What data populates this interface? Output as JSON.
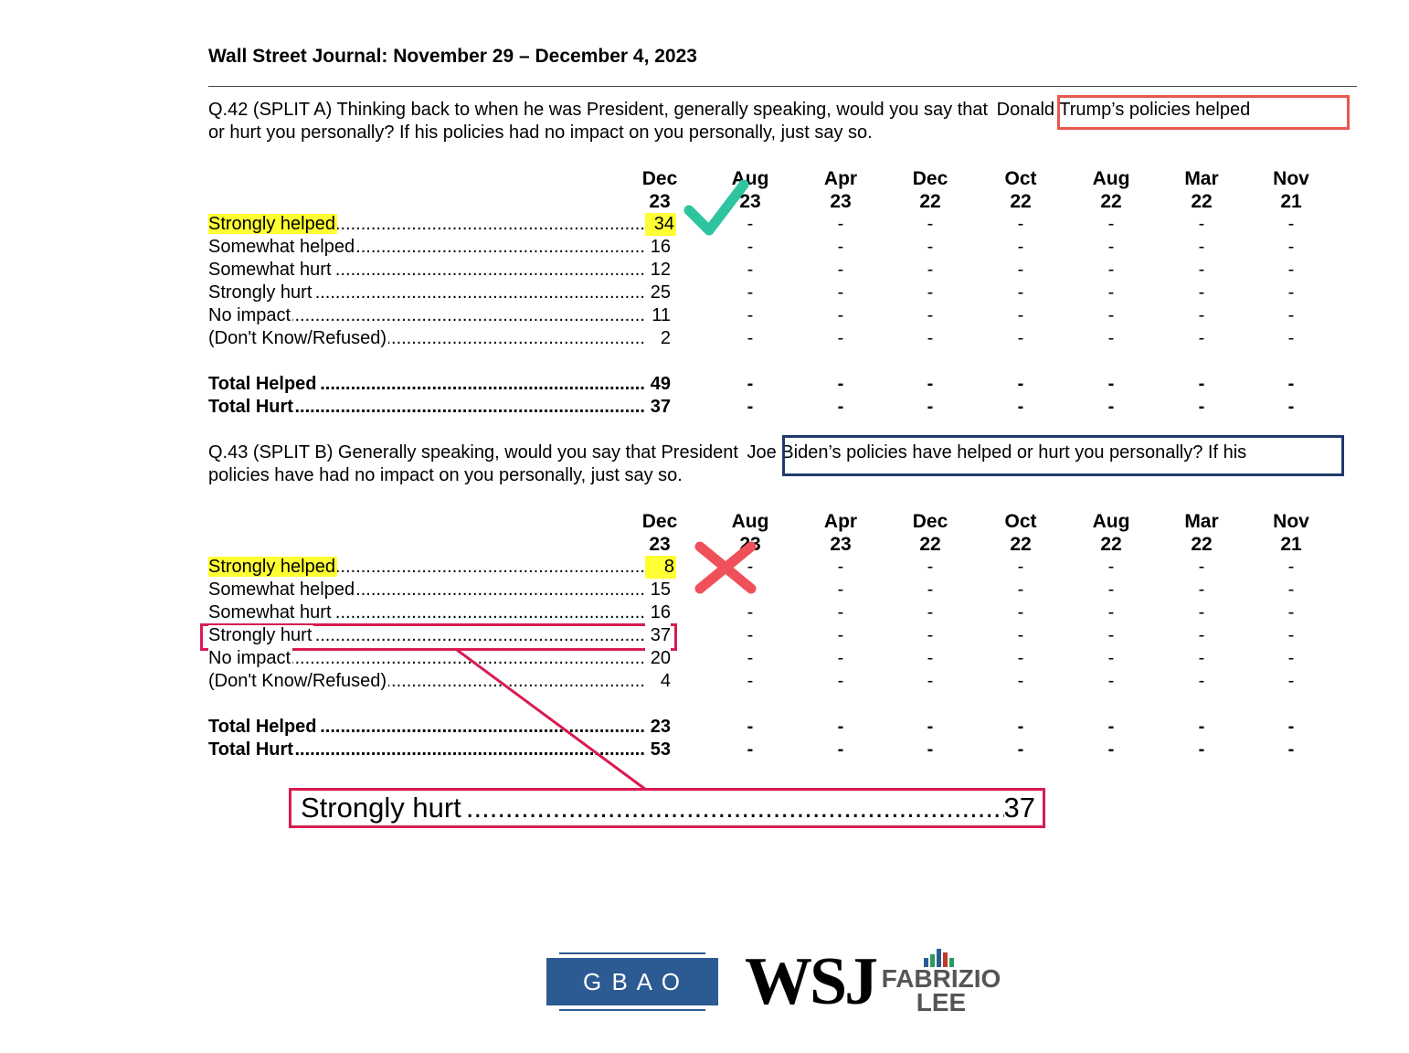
{
  "header": {
    "title": "Wall Street Journal: November 29 – December 4, 2023"
  },
  "columns": [
    {
      "month": "Dec",
      "year": "23"
    },
    {
      "month": "Aug",
      "year": "23"
    },
    {
      "month": "Apr",
      "year": "23"
    },
    {
      "month": "Dec",
      "year": "22"
    },
    {
      "month": "Oct",
      "year": "22"
    },
    {
      "month": "Aug",
      "year": "22"
    },
    {
      "month": "Mar",
      "year": "22"
    },
    {
      "month": "Nov",
      "year": "21"
    }
  ],
  "q42": {
    "prefix": "Q.42 (SPLIT A) Thinking back to when he was President, generally speaking, would you say that ",
    "highlight": "Donald Trump’s policies helped",
    "line2": "or hurt you personally? If his policies had no impact on you personally, just say so.",
    "rows": [
      {
        "label": "Strongly helped",
        "value": "34"
      },
      {
        "label": "Somewhat helped",
        "value": "16"
      },
      {
        "label": "Somewhat hurt",
        "value": "12"
      },
      {
        "label": "Strongly hurt",
        "value": "25"
      },
      {
        "label": "No impact",
        "value": "11"
      },
      {
        "label": "(Don't Know/Refused)",
        "value": "2"
      }
    ],
    "totals": [
      {
        "label": "Total Helped",
        "value": "49"
      },
      {
        "label": "Total Hurt",
        "value": "37"
      }
    ]
  },
  "q43": {
    "prefix": "Q.43 (SPLIT B) Generally speaking, would you say that President ",
    "highlight": "Joe Biden’s policies have helped or hurt you personally? If his",
    "line2": "policies have had no impact on you personally, just say so.",
    "rows": [
      {
        "label": "Strongly helped",
        "value": "8"
      },
      {
        "label": "Somewhat helped",
        "value": "15"
      },
      {
        "label": "Somewhat hurt",
        "value": "16"
      },
      {
        "label": "Strongly hurt",
        "value": "37"
      },
      {
        "label": "No impact",
        "value": "20"
      },
      {
        "label": "(Don't Know/Refused)",
        "value": "4"
      }
    ],
    "totals": [
      {
        "label": "Total Helped",
        "value": "23"
      },
      {
        "label": "Total Hurt",
        "value": "53"
      }
    ]
  },
  "empty_cell": "-",
  "zoom": {
    "label": "Strongly hurt",
    "value": "37"
  },
  "logos": {
    "gbao": "G B A O",
    "wsj": "WSJ",
    "fl_line1": "FABRIZIO",
    "fl_line2": "LEE"
  },
  "colors": {
    "trump_box": "#e8574f",
    "biden_box": "#1f3a6b",
    "highlight": "#ffff33",
    "check": "#2ec4a0",
    "cross": "#f0505a",
    "callout": "#d81b50"
  },
  "icons": {
    "check": "check-icon",
    "cross": "cross-icon"
  }
}
